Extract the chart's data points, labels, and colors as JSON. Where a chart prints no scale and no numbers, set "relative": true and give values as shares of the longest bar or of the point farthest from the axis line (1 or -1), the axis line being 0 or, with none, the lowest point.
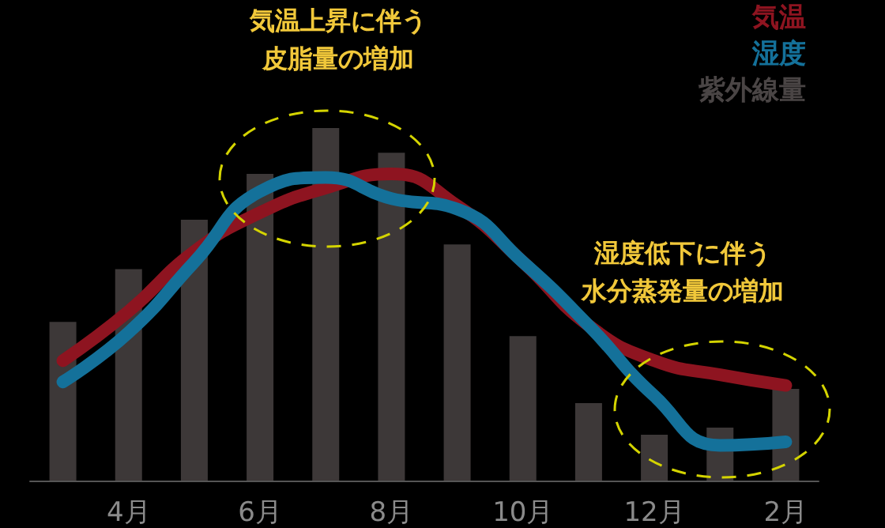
{
  "chart_data": {
    "type": "bar",
    "relative": true,
    "categories": [
      null,
      "4月",
      null,
      "6月",
      null,
      "8月",
      null,
      "10月",
      null,
      "12月",
      null,
      "2月"
    ],
    "series": [
      {
        "name": "気温",
        "type": "line",
        "color": "#8e1420",
        "values": [
          0.34,
          0.48,
          0.65,
          0.76,
          0.83,
          0.87,
          0.78,
          0.62,
          0.44,
          0.34,
          0.3,
          0.27
        ]
      },
      {
        "name": "湿度",
        "type": "line",
        "color": "#14719a",
        "values": [
          0.28,
          0.42,
          0.62,
          0.82,
          0.86,
          0.8,
          0.77,
          0.62,
          0.44,
          0.24,
          0.1,
          0.11
        ]
      },
      {
        "name": "紫外線量",
        "color": "#3d3838",
        "values": [
          0.45,
          0.6,
          0.74,
          0.87,
          1,
          0.93,
          0.67,
          0.41,
          0.22,
          0.13,
          0.15,
          0.26
        ]
      }
    ],
    "annotations": [
      "気温上昇に伴う",
      "皮脂量の増加",
      "湿度低下に伴う",
      "水分蒸発量の増加"
    ],
    "legend": "top right",
    "marker": "none"
  }
}
